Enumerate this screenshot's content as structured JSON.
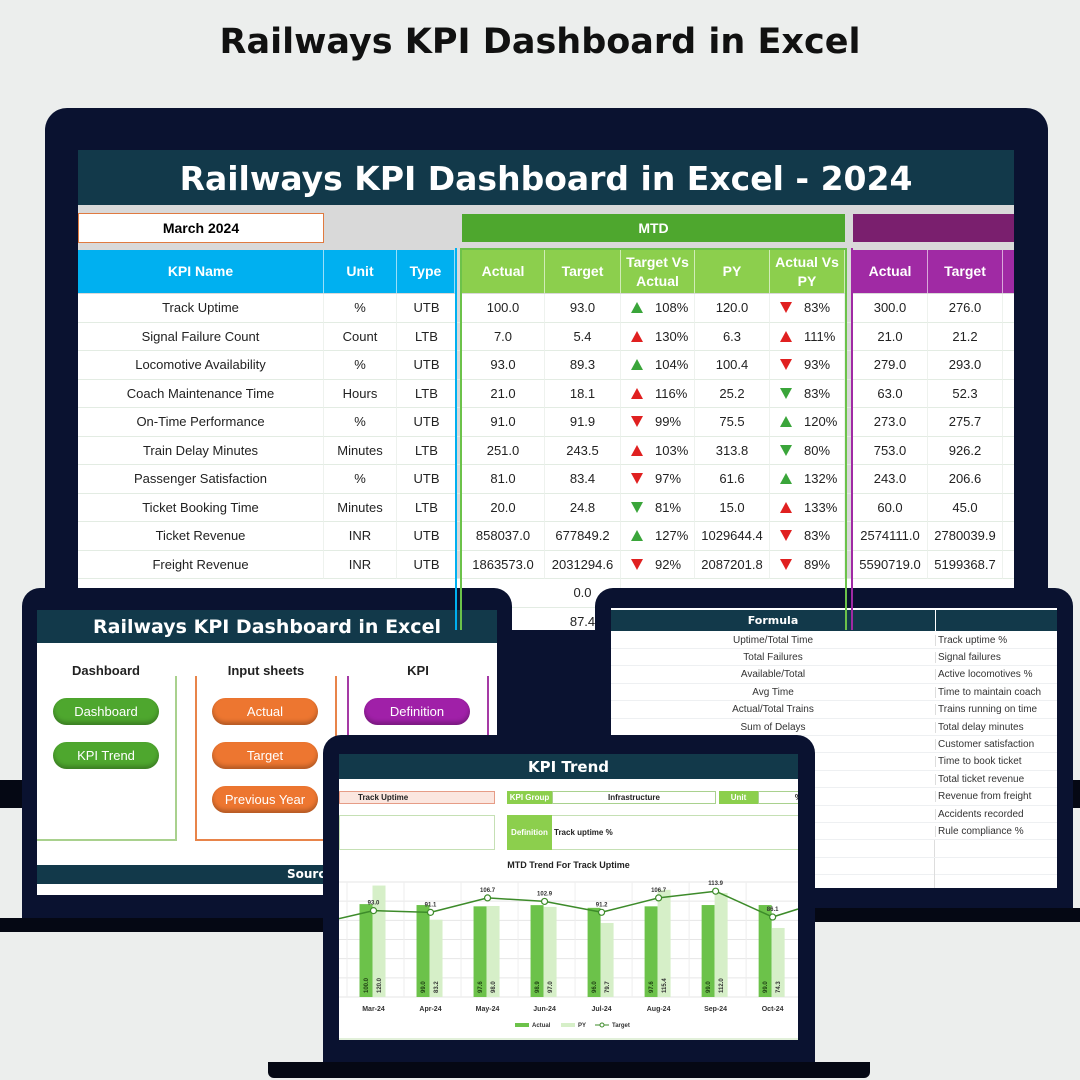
{
  "page_title": "Railways KPI Dashboard in Excel",
  "dashboard": {
    "title": "Railways KPI Dashboard in Excel - 2024",
    "month": "March 2024",
    "mtd_label": "MTD",
    "ytd_label": "",
    "headers": {
      "kpi_name": "KPI Name",
      "unit": "Unit",
      "type": "Type",
      "actual": "Actual",
      "target": "Target",
      "target_vs_actual": "Target Vs Actual",
      "py": "PY",
      "actual_vs_py": "Actual Vs PY",
      "ytd_actual": "Actual",
      "ytd_target": "Target"
    },
    "colors": {
      "header_band": "#12394a",
      "kpi_blue": "#00b0f0",
      "mtd_green": "#4ea72e",
      "mtd_header": "#8ccf4d",
      "ytd_purple": "#7a1f6e",
      "ytd_header": "#a02aa4",
      "up_good": "#3aa53a",
      "down_bad": "#e02020"
    },
    "rows": [
      {
        "name": "Track Uptime",
        "unit": "%",
        "type": "UTB",
        "actual": "100.0",
        "target": "93.0",
        "tva_dir": "up",
        "tva_color": "#3aa53a",
        "tva": "108%",
        "py": "120.0",
        "avp_dir": "down",
        "avp_color": "#e02020",
        "avp": "83%",
        "ytd_actual": "300.0",
        "ytd_target": "276.0"
      },
      {
        "name": "Signal Failure Count",
        "unit": "Count",
        "type": "LTB",
        "actual": "7.0",
        "target": "5.4",
        "tva_dir": "up",
        "tva_color": "#e02020",
        "tva": "130%",
        "py": "6.3",
        "avp_dir": "up",
        "avp_color": "#e02020",
        "avp": "111%",
        "ytd_actual": "21.0",
        "ytd_target": "21.2"
      },
      {
        "name": "Locomotive Availability",
        "unit": "%",
        "type": "UTB",
        "actual": "93.0",
        "target": "89.3",
        "tva_dir": "up",
        "tva_color": "#3aa53a",
        "tva": "104%",
        "py": "100.4",
        "avp_dir": "down",
        "avp_color": "#e02020",
        "avp": "93%",
        "ytd_actual": "279.0",
        "ytd_target": "293.0"
      },
      {
        "name": "Coach Maintenance Time",
        "unit": "Hours",
        "type": "LTB",
        "actual": "21.0",
        "target": "18.1",
        "tva_dir": "up",
        "tva_color": "#e02020",
        "tva": "116%",
        "py": "25.2",
        "avp_dir": "down",
        "avp_color": "#3aa53a",
        "avp": "83%",
        "ytd_actual": "63.0",
        "ytd_target": "52.3"
      },
      {
        "name": "On-Time Performance",
        "unit": "%",
        "type": "UTB",
        "actual": "91.0",
        "target": "91.9",
        "tva_dir": "down",
        "tva_color": "#e02020",
        "tva": "99%",
        "py": "75.5",
        "avp_dir": "up",
        "avp_color": "#3aa53a",
        "avp": "120%",
        "ytd_actual": "273.0",
        "ytd_target": "275.7"
      },
      {
        "name": "Train Delay Minutes",
        "unit": "Minutes",
        "type": "LTB",
        "actual": "251.0",
        "target": "243.5",
        "tva_dir": "up",
        "tva_color": "#e02020",
        "tva": "103%",
        "py": "313.8",
        "avp_dir": "down",
        "avp_color": "#3aa53a",
        "avp": "80%",
        "ytd_actual": "753.0",
        "ytd_target": "926.2"
      },
      {
        "name": "Passenger Satisfaction",
        "unit": "%",
        "type": "UTB",
        "actual": "81.0",
        "target": "83.4",
        "tva_dir": "down",
        "tva_color": "#e02020",
        "tva": "97%",
        "py": "61.6",
        "avp_dir": "up",
        "avp_color": "#3aa53a",
        "avp": "132%",
        "ytd_actual": "243.0",
        "ytd_target": "206.6"
      },
      {
        "name": "Ticket Booking Time",
        "unit": "Minutes",
        "type": "LTB",
        "actual": "20.0",
        "target": "24.8",
        "tva_dir": "down",
        "tva_color": "#3aa53a",
        "tva": "81%",
        "py": "15.0",
        "avp_dir": "up",
        "avp_color": "#e02020",
        "avp": "133%",
        "ytd_actual": "60.0",
        "ytd_target": "45.0"
      },
      {
        "name": "Ticket Revenue",
        "unit": "INR",
        "type": "UTB",
        "actual": "858037.0",
        "target": "677849.2",
        "tva_dir": "up",
        "tva_color": "#3aa53a",
        "tva": "127%",
        "py": "1029644.4",
        "avp_dir": "down",
        "avp_color": "#e02020",
        "avp": "83%",
        "ytd_actual": "2574111.0",
        "ytd_target": "2780039.9"
      },
      {
        "name": "Freight Revenue",
        "unit": "INR",
        "type": "UTB",
        "actual": "1863573.0",
        "target": "2031294.6",
        "tva_dir": "down",
        "tva_color": "#e02020",
        "tva": "92%",
        "py": "2087201.8",
        "avp_dir": "down",
        "avp_color": "#e02020",
        "avp": "89%",
        "ytd_actual": "5590719.0",
        "ytd_target": "5199368.7"
      }
    ],
    "partial_rows": [
      {
        "target": "0.0"
      },
      {
        "target": "87.4"
      }
    ]
  },
  "home": {
    "title": "Railways KPI Dashboard in Excel",
    "groups": [
      {
        "label": "Dashboard",
        "buttons": [
          "Dashboard",
          "KPI Trend"
        ]
      },
      {
        "label": "Input sheets",
        "buttons": [
          "Actual",
          "Target",
          "Previous Year"
        ]
      },
      {
        "label": "KPI",
        "buttons": [
          "Definition"
        ]
      }
    ],
    "footer": "Source"
  },
  "definitions": {
    "formula_header": "Formula",
    "formulas": [
      "Uptime/Total Time",
      "Total Failures",
      "Available/Total",
      "Avg Time",
      "Actual/Total Trains",
      "Sum of Delays"
    ],
    "descriptions": [
      "Track uptime %",
      "Signal failures",
      "Active locomotives %",
      "Time to maintain coach",
      "Trains running on time",
      "Total delay minutes",
      "Customer satisfaction",
      "Time to book ticket",
      "Total ticket revenue",
      "Revenue from freight",
      "Accidents recorded",
      "Rule compliance %"
    ]
  },
  "trend": {
    "title": "KPI Trend",
    "kpi": "Track Uptime",
    "kpi_group_label": "KPI Group",
    "kpi_group": "Infrastructure",
    "unit_label": "Unit",
    "unit": "%",
    "definition_label": "Definition",
    "definition": "Track uptime %"
  },
  "chart_data": {
    "type": "bar",
    "title": "MTD Trend For Track Uptime",
    "categories": [
      "Mar-24",
      "Apr-24",
      "May-24",
      "Jun-24",
      "Jul-24",
      "Aug-24",
      "Sep-24",
      "Oct-24"
    ],
    "series": [
      {
        "name": "Actual",
        "kind": "bar",
        "color": "#6cc24a",
        "values": [
          100.0,
          99.0,
          97.6,
          98.9,
          96.0,
          97.6,
          99.0,
          99.0
        ]
      },
      {
        "name": "PY",
        "kind": "bar",
        "color": "#d6efc8",
        "values": [
          120.0,
          83.2,
          98.0,
          97.0,
          79.7,
          115.4,
          112.0,
          74.3
        ]
      },
      {
        "name": "Target",
        "kind": "line",
        "color": "#3d8b2a",
        "values": [
          93.0,
          91.1,
          106.7,
          102.9,
          91.2,
          106.7,
          113.9,
          86.1
        ]
      }
    ],
    "ylim": [
      0,
      130
    ],
    "grid": true,
    "legend": "bottom"
  }
}
